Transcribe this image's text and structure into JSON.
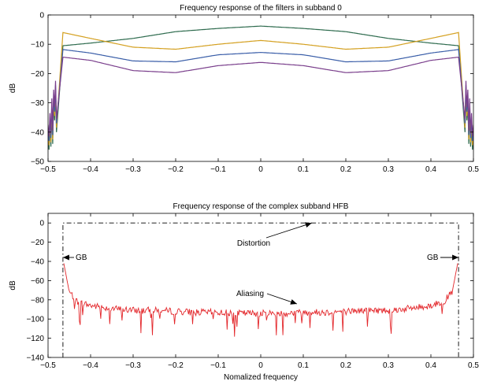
{
  "chart_data": [
    {
      "type": "line",
      "title": "Frequency response of the filters in subband 0",
      "xlabel": "",
      "ylabel": "dB",
      "xlim": [
        -0.5,
        0.5
      ],
      "ylim": [
        -50,
        0
      ],
      "xticks": [
        -0.5,
        -0.4,
        -0.3,
        -0.2,
        -0.1,
        0,
        0.1,
        0.2,
        0.3,
        0.4,
        0.5
      ],
      "xtick_labels": [
        "−0.5",
        "−0.4",
        "−0.3",
        "−0.2",
        "−0.1",
        "0",
        "0.1",
        "0.2",
        "0.3",
        "0.4",
        "0.5"
      ],
      "yticks": [
        -50,
        -40,
        -30,
        -20,
        -10,
        0
      ],
      "ytick_labels": [
        "−50",
        "−40",
        "−30",
        "−20",
        "−10",
        "0"
      ],
      "grid": false,
      "series": [
        {
          "color": "#2e6b4e",
          "x": [
            -0.465,
            -0.4,
            -0.3,
            -0.2,
            -0.1,
            0,
            0.1,
            0.2,
            0.3,
            0.4,
            0.465
          ],
          "values": [
            -10.5,
            -9.6,
            -8.0,
            -5.7,
            -4.6,
            -3.8,
            -4.6,
            -5.7,
            -8.0,
            -9.6,
            -10.5
          ]
        },
        {
          "color": "#d4a020",
          "x": [
            -0.465,
            -0.4,
            -0.3,
            -0.2,
            -0.1,
            0,
            0.1,
            0.2,
            0.3,
            0.4,
            0.465
          ],
          "values": [
            -6.0,
            -8.0,
            -11.0,
            -11.7,
            -10.0,
            -8.7,
            -10.0,
            -11.7,
            -11.0,
            -8.0,
            -6.0
          ]
        },
        {
          "color": "#3a5ea8",
          "x": [
            -0.465,
            -0.4,
            -0.3,
            -0.2,
            -0.1,
            0,
            0.1,
            0.2,
            0.3,
            0.4,
            0.465
          ],
          "values": [
            -11.8,
            -13.0,
            -15.7,
            -16.0,
            -13.6,
            -12.8,
            -13.6,
            -16.0,
            -15.7,
            -13.0,
            -11.8
          ]
        },
        {
          "color": "#7a3f8c",
          "x": [
            -0.465,
            -0.4,
            -0.3,
            -0.2,
            -0.1,
            0,
            0.1,
            0.2,
            0.3,
            0.4,
            0.465
          ],
          "values": [
            -14.4,
            -15.5,
            -19.0,
            -19.7,
            -17.3,
            -16.2,
            -17.3,
            -19.7,
            -19.0,
            -15.5,
            -14.4
          ]
        }
      ]
    },
    {
      "type": "line",
      "title": "Frequency response of the complex subband HFB",
      "xlabel": "Nomalized frequency",
      "ylabel": "dB",
      "xlim": [
        -0.5,
        0.5
      ],
      "ylim": [
        -140,
        10
      ],
      "xticks": [
        -0.5,
        -0.4,
        -0.3,
        -0.2,
        -0.1,
        0,
        0.1,
        0.2,
        0.3,
        0.4,
        0.5
      ],
      "xtick_labels": [
        "−0.5",
        "−0.4",
        "−0.3",
        "−0.2",
        "−0.1",
        "0",
        "0.1",
        "0.2",
        "0.3",
        "0.4",
        "0.5"
      ],
      "yticks": [
        -140,
        -120,
        -100,
        -80,
        -60,
        -40,
        -20,
        0
      ],
      "ytick_labels": [
        "−140",
        "−120",
        "−100",
        "−80",
        "−60",
        "−40",
        "−20",
        "0"
      ],
      "grid": false,
      "series": [
        {
          "color": "#2b4a9e",
          "style": "dashdot",
          "x": [
            -0.465,
            -0.465,
            0.465,
            0.465
          ],
          "values": [
            -140,
            0,
            0,
            -140
          ]
        },
        {
          "color": "#e3262a",
          "x": [
            -0.463,
            -0.45,
            -0.43,
            -0.4,
            -0.35,
            -0.3,
            -0.25,
            -0.2,
            -0.15,
            -0.1,
            -0.05,
            0,
            0.05,
            0.1,
            0.15,
            0.2,
            0.25,
            0.3,
            0.35,
            0.4,
            0.43,
            0.45,
            0.463
          ],
          "values": [
            -42,
            -72,
            -82,
            -86,
            -89,
            -91,
            -91,
            -92,
            -93,
            -93,
            -94,
            -94,
            -94,
            -93,
            -93,
            -92,
            -91,
            -91,
            -89,
            -86,
            -82,
            -72,
            -42
          ]
        }
      ],
      "annotations": [
        {
          "text": "Distortion",
          "x": 0.12,
          "y": 0
        },
        {
          "text": "GB",
          "x": -0.465,
          "y": -40
        },
        {
          "text": "GB",
          "x": 0.465,
          "y": -40
        },
        {
          "text": "Aliasing",
          "x": 0.1,
          "y": -93
        }
      ]
    }
  ]
}
